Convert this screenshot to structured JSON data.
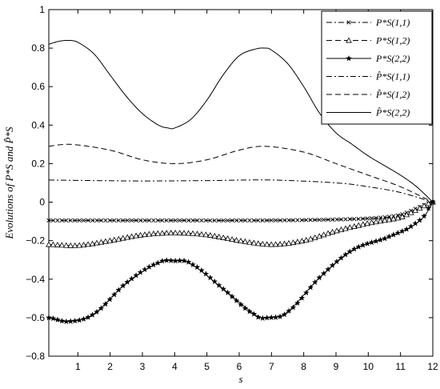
{
  "chart_data": {
    "type": "line",
    "xlabel": "s",
    "ylabel": "Evolutions of P*S and P̂*S",
    "xlim": [
      0.1,
      12
    ],
    "ylim": [
      -0.8,
      1
    ],
    "xticks": [
      "1",
      "2",
      "3",
      "4",
      "5",
      "6",
      "7",
      "8",
      "9",
      "10",
      "11",
      "12"
    ],
    "yticks": [
      "−0.8",
      "−0.6",
      "−0.4",
      "−0.2",
      "0",
      "0.2",
      "0.4",
      "0.6",
      "0.8",
      "1"
    ],
    "grid": false,
    "legend_position": "top-right",
    "series": [
      {
        "name": "P*S(1,1)",
        "line": "dashdot",
        "marker": "x",
        "x": [
          0.1,
          2,
          4,
          6,
          8,
          10,
          11,
          12
        ],
        "y": [
          -0.095,
          -0.095,
          -0.095,
          -0.095,
          -0.093,
          -0.085,
          -0.065,
          0
        ]
      },
      {
        "name": "P*S(1,2)",
        "line": "dashed",
        "marker": "triangle",
        "x": [
          0.1,
          1,
          2,
          3,
          4,
          5,
          6,
          7,
          8,
          9,
          10,
          11,
          11.5,
          12
        ],
        "y": [
          -0.22,
          -0.225,
          -0.2,
          -0.17,
          -0.16,
          -0.17,
          -0.2,
          -0.22,
          -0.2,
          -0.15,
          -0.11,
          -0.08,
          -0.04,
          0
        ]
      },
      {
        "name": "P*S(2,2)",
        "line": "solid",
        "marker": "star",
        "x": [
          0.1,
          0.7,
          1.5,
          2.5,
          3.5,
          4,
          4.5,
          5.5,
          6.5,
          6.9,
          7.5,
          8.5,
          9.5,
          10.5,
          11.2,
          11.7,
          12
        ],
        "y": [
          -0.6,
          -0.62,
          -0.58,
          -0.42,
          -0.315,
          -0.305,
          -0.32,
          -0.45,
          -0.585,
          -0.6,
          -0.57,
          -0.39,
          -0.25,
          -0.19,
          -0.14,
          -0.08,
          0
        ]
      },
      {
        "name": "P̂*S(1,1)",
        "line": "dashdot",
        "marker": "none",
        "x": [
          0.1,
          1,
          3,
          5,
          7,
          9,
          10,
          11,
          12
        ],
        "y": [
          0.115,
          0.113,
          0.11,
          0.112,
          0.115,
          0.1,
          0.08,
          0.05,
          0
        ]
      },
      {
        "name": "P̂*S(1,2)",
        "line": "dashed",
        "marker": "none",
        "x": [
          0.1,
          0.8,
          2,
          3,
          4,
          5,
          6,
          6.8,
          8,
          9,
          10,
          11,
          12
        ],
        "y": [
          0.29,
          0.3,
          0.27,
          0.22,
          0.2,
          0.22,
          0.27,
          0.29,
          0.26,
          0.2,
          0.14,
          0.08,
          0
        ]
      },
      {
        "name": "P̂*S(2,2)",
        "line": "solid",
        "marker": "none",
        "x": [
          0.1,
          0.4,
          0.7,
          1,
          1.5,
          2,
          2.5,
          3,
          3.5,
          3.8,
          4,
          4.5,
          5,
          5.5,
          6,
          6.5,
          6.8,
          7,
          7.5,
          8,
          8.5,
          9,
          9.5,
          10,
          10.5,
          11,
          11.5,
          12
        ],
        "y": [
          0.82,
          0.835,
          0.84,
          0.83,
          0.77,
          0.66,
          0.55,
          0.46,
          0.4,
          0.385,
          0.385,
          0.43,
          0.53,
          0.66,
          0.76,
          0.795,
          0.8,
          0.79,
          0.72,
          0.6,
          0.46,
          0.36,
          0.3,
          0.24,
          0.19,
          0.14,
          0.08,
          0
        ]
      }
    ]
  }
}
